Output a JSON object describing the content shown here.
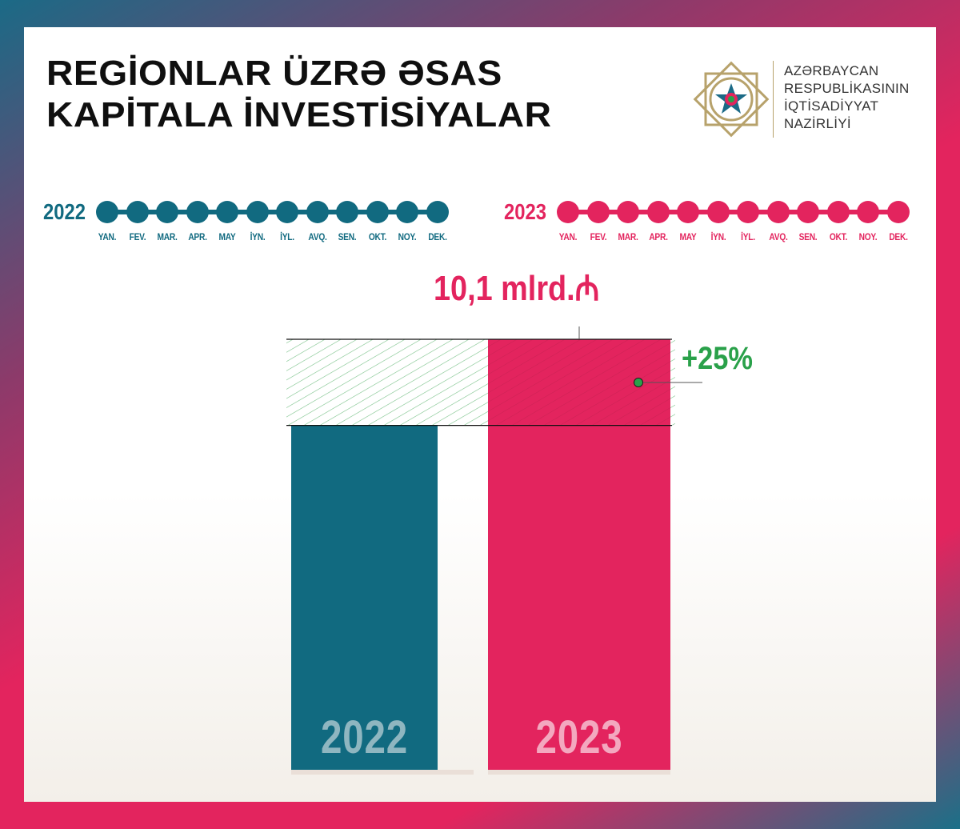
{
  "header": {
    "title_line1": "REGİONLAR ÜZRƏ ƏSAS",
    "title_line2": "KAPİTALA İNVESTİSİYALAR",
    "ministry_lines": [
      "AZƏRBAYCAN",
      "RESPUBLİKASININ",
      "İQTİSADİYYAT",
      "NAZİRLİYİ"
    ]
  },
  "timelines": [
    {
      "year": "2022",
      "color": "#116a80"
    },
    {
      "year": "2023",
      "color": "#e3245e"
    }
  ],
  "months": [
    "YAN.",
    "FEV.",
    "MAR.",
    "APR.",
    "MAY",
    "İYN.",
    "İYL.",
    "AVQ.",
    "SEN.",
    "OKT.",
    "NOY.",
    "DEK."
  ],
  "colors": {
    "teal": "#116a80",
    "pink": "#e3245e",
    "green": "#2aa14a",
    "gold": "#b7a26b"
  },
  "chart_data": {
    "type": "bar",
    "categories": [
      "2022",
      "2023"
    ],
    "values": [
      8.08,
      10.1
    ],
    "value_label": "10,1 mlrd.",
    "currency_symbol": "₼",
    "growth_label": "+25%"
  }
}
